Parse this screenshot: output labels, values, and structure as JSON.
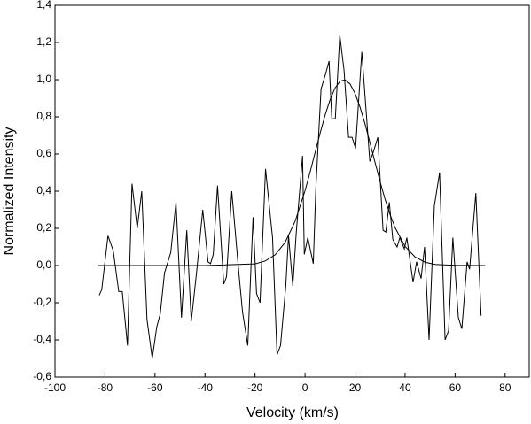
{
  "chart_data": {
    "type": "line",
    "xlabel": "Velocity (km/s)",
    "ylabel": "Normalized Intensity",
    "xlim": [
      -100,
      90
    ],
    "ylim": [
      -0.6,
      1.4
    ],
    "xticks": [
      -100,
      -80,
      -60,
      -40,
      -20,
      0,
      20,
      40,
      60,
      80
    ],
    "yticks": [
      {
        "value": -0.6,
        "label": "-0,6"
      },
      {
        "value": -0.4,
        "label": "-0,4"
      },
      {
        "value": -0.2,
        "label": "-0,2"
      },
      {
        "value": 0.0,
        "label": "0,0"
      },
      {
        "value": 0.2,
        "label": "0,2"
      },
      {
        "value": 0.4,
        "label": "0,4"
      },
      {
        "value": 0.6,
        "label": "0,6"
      },
      {
        "value": 0.8,
        "label": "0,8"
      },
      {
        "value": 1.0,
        "label": "1,0"
      },
      {
        "value": 1.2,
        "label": "1,2"
      },
      {
        "value": 1.4,
        "label": "1,4"
      }
    ],
    "grid": false,
    "series": [
      {
        "color": "#000000",
        "x": [
          -82.3,
          -81.3,
          -78.8,
          -76.7,
          -74.5,
          -73.1,
          -71.0,
          -69.2,
          -67.1,
          -65.3,
          -63.2,
          -61.1,
          -59.3,
          -57.9,
          -56.2,
          -53.7,
          -51.6,
          -49.4,
          -47.3,
          -45.5,
          -43.4,
          -40.9,
          -38.8,
          -37.8,
          -36.7,
          -35.0,
          -32.5,
          -31.4,
          -29.3,
          -26.8,
          -25.0,
          -22.9,
          -20.8,
          -19.4,
          -18.0,
          -15.8,
          -13.0,
          -11.2,
          -9.8,
          -7.7,
          -6.6,
          -4.9,
          -3.5,
          -1.0,
          -0.3,
          1.1,
          3.3,
          4.3,
          6.4,
          8.2,
          9.6,
          10.7,
          12.1,
          13.9,
          15.6,
          17.4,
          18.8,
          20.2,
          22.7,
          25.9,
          27.3,
          29.1,
          31.2,
          32.3,
          33.7,
          35.1,
          36.8,
          37.9,
          39.7,
          40.7,
          43.2,
          44.6,
          46.4,
          47.8,
          49.6,
          51.7,
          53.8,
          56.0,
          57.4,
          59.1,
          61.3,
          62.7,
          64.8,
          65.8,
          68.3,
          70.4
        ],
        "values": [
          -0.16,
          -0.13,
          0.16,
          0.08,
          -0.14,
          -0.14,
          -0.43,
          0.44,
          0.2,
          0.4,
          -0.29,
          -0.5,
          -0.33,
          -0.26,
          -0.04,
          0.07,
          0.34,
          -0.28,
          0.19,
          -0.3,
          -0.04,
          0.3,
          0.02,
          0.01,
          0.06,
          0.43,
          -0.1,
          -0.06,
          0.4,
          0.01,
          -0.25,
          -0.43,
          0.26,
          -0.15,
          -0.2,
          0.52,
          0.15,
          -0.48,
          -0.43,
          -0.11,
          0.16,
          -0.11,
          0.18,
          0.59,
          0.06,
          0.15,
          0.01,
          0.41,
          0.95,
          1.03,
          1.1,
          0.79,
          0.79,
          1.24,
          1.05,
          0.69,
          0.69,
          0.63,
          1.15,
          0.56,
          0.61,
          0.69,
          0.19,
          0.18,
          0.34,
          0.14,
          0.1,
          0.15,
          0.09,
          0.15,
          -0.09,
          0.02,
          -0.07,
          0.1,
          -0.4,
          0.32,
          0.5,
          -0.4,
          -0.35,
          0.15,
          -0.28,
          -0.34,
          0.02,
          -0.02,
          0.39,
          -0.27
        ]
      },
      {
        "color": "#000000",
        "x": [
          -83,
          -40,
          -20,
          -16,
          -12,
          -8,
          -4,
          0,
          2,
          4,
          6,
          8,
          10,
          12,
          14,
          16,
          18,
          20,
          22,
          24,
          26,
          28,
          30,
          32,
          34,
          36,
          40,
          44,
          48,
          52,
          60,
          72
        ],
        "values": [
          0,
          0,
          0.009,
          0.024,
          0.057,
          0.124,
          0.237,
          0.403,
          0.502,
          0.607,
          0.711,
          0.808,
          0.892,
          0.955,
          0.992,
          0.999,
          0.977,
          0.926,
          0.852,
          0.761,
          0.659,
          0.554,
          0.452,
          0.357,
          0.274,
          0.204,
          0.103,
          0.046,
          0.018,
          0.006,
          0.001,
          0
        ]
      }
    ]
  }
}
